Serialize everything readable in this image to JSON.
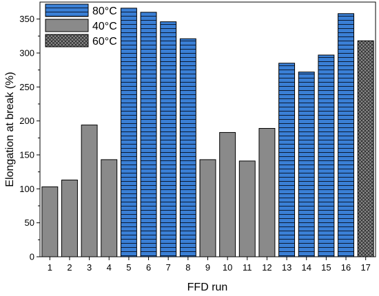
{
  "chart_data": {
    "type": "bar",
    "xlabel": "FFD run",
    "ylabel": "Elongation at break (%)",
    "ylim": [
      0,
      375
    ],
    "yticks": [
      0,
      50,
      100,
      150,
      200,
      250,
      300,
      350
    ],
    "categories": [
      "1",
      "2",
      "3",
      "4",
      "5",
      "6",
      "7",
      "8",
      "9",
      "10",
      "11",
      "12",
      "13",
      "14",
      "15",
      "16",
      "17"
    ],
    "values": [
      103,
      113,
      194,
      143,
      366,
      360,
      346,
      321,
      143,
      183,
      141,
      189,
      285,
      272,
      297,
      358,
      318
    ],
    "groups": [
      "40°C",
      "40°C",
      "40°C",
      "40°C",
      "80°C",
      "80°C",
      "80°C",
      "80°C",
      "40°C",
      "40°C",
      "40°C",
      "40°C",
      "80°C",
      "80°C",
      "80°C",
      "80°C",
      "60°C"
    ],
    "legend": {
      "position": "top-left",
      "entries": [
        {
          "name": "80°C",
          "color": "#3a7fd5",
          "pattern": "horizontal-lines"
        },
        {
          "name": "40°C",
          "color": "#8a8a8a",
          "pattern": "solid"
        },
        {
          "name": "60°C",
          "color": "#8a8a8a",
          "pattern": "crosshatch"
        }
      ]
    },
    "grid": false
  }
}
